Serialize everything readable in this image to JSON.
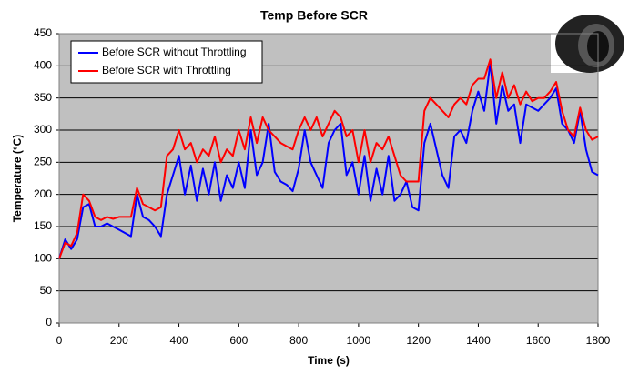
{
  "chart_data": {
    "type": "line",
    "title": "Temp Before SCR",
    "x_label": "Time (s)",
    "y_label": "Temperature (°C)",
    "x": [
      0,
      20,
      40,
      60,
      80,
      100,
      120,
      140,
      160,
      180,
      200,
      220,
      240,
      260,
      280,
      300,
      320,
      340,
      360,
      380,
      400,
      420,
      440,
      460,
      480,
      500,
      520,
      540,
      560,
      580,
      600,
      620,
      640,
      660,
      680,
      700,
      720,
      740,
      760,
      780,
      800,
      820,
      840,
      860,
      880,
      900,
      920,
      940,
      960,
      980,
      1000,
      1020,
      1040,
      1060,
      1080,
      1100,
      1120,
      1140,
      1160,
      1180,
      1200,
      1220,
      1240,
      1260,
      1280,
      1300,
      1320,
      1340,
      1360,
      1380,
      1400,
      1420,
      1440,
      1460,
      1480,
      1500,
      1520,
      1540,
      1560,
      1580,
      1600,
      1620,
      1640,
      1660,
      1680,
      1700,
      1720,
      1740,
      1760,
      1780,
      1800
    ],
    "series": [
      {
        "name": "Before SCR without Throttling",
        "color": "#0000ff",
        "values": [
          100,
          130,
          115,
          130,
          180,
          185,
          150,
          150,
          155,
          150,
          145,
          140,
          135,
          200,
          165,
          160,
          150,
          135,
          200,
          230,
          260,
          200,
          245,
          190,
          240,
          200,
          250,
          190,
          230,
          210,
          250,
          210,
          300,
          230,
          250,
          310,
          235,
          220,
          215,
          205,
          240,
          300,
          250,
          230,
          210,
          280,
          300,
          310,
          230,
          250,
          200,
          260,
          190,
          240,
          200,
          260,
          190,
          200,
          220,
          180,
          175,
          280,
          310,
          270,
          230,
          210,
          290,
          300,
          280,
          330,
          360,
          330,
          405,
          310,
          370,
          330,
          340,
          280,
          340,
          335,
          330,
          340,
          350,
          365,
          310,
          300,
          280,
          330,
          270,
          235,
          230
        ]
      },
      {
        "name": "Before SCR with Throttling",
        "color": "#ff0000",
        "values": [
          100,
          125,
          120,
          140,
          200,
          190,
          165,
          160,
          165,
          162,
          165,
          165,
          165,
          210,
          185,
          180,
          175,
          180,
          260,
          270,
          300,
          270,
          280,
          250,
          270,
          260,
          290,
          250,
          270,
          260,
          300,
          270,
          320,
          280,
          320,
          300,
          290,
          280,
          275,
          270,
          300,
          320,
          300,
          320,
          290,
          310,
          330,
          320,
          290,
          300,
          250,
          300,
          250,
          280,
          270,
          290,
          260,
          230,
          220,
          220,
          220,
          330,
          350,
          340,
          330,
          320,
          340,
          350,
          340,
          370,
          380,
          380,
          410,
          350,
          390,
          350,
          370,
          340,
          360,
          345,
          350,
          350,
          360,
          375,
          330,
          300,
          290,
          335,
          300,
          285,
          290
        ]
      }
    ],
    "xlim": [
      0,
      1800
    ],
    "xticks": [
      0,
      200,
      400,
      600,
      800,
      1000,
      1200,
      1400,
      1600,
      1800
    ],
    "ylim": [
      0,
      450
    ],
    "yticks": [
      0,
      50,
      100,
      150,
      200,
      250,
      300,
      350,
      400,
      450
    ],
    "grid": true,
    "legend": "upper left"
  }
}
